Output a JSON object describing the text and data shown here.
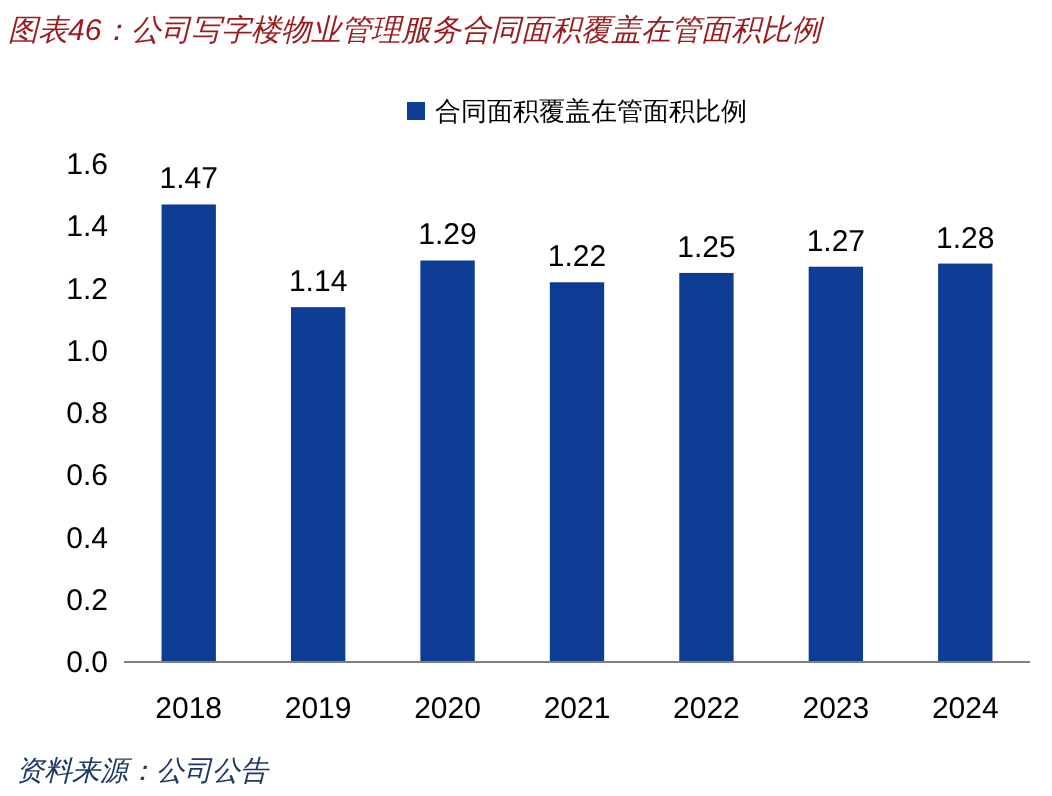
{
  "chart_data": {
    "type": "bar",
    "title": "图表46：公司写字楼物业管理服务合同面积覆盖在管面积比例",
    "categories": [
      "2018",
      "2019",
      "2020",
      "2021",
      "2022",
      "2023",
      "2024"
    ],
    "series": [
      {
        "name": "合同面积覆盖在管面积比例",
        "color": "#0e3b94",
        "values": [
          1.47,
          1.14,
          1.29,
          1.22,
          1.25,
          1.27,
          1.28
        ]
      }
    ],
    "ylim": [
      0,
      1.6
    ],
    "yticks": [
      {
        "value": 0,
        "label": "0.0"
      },
      0.2,
      0.4,
      0.6,
      0.8,
      {
        "value": 1,
        "label": "1.0"
      },
      1.2,
      1.4,
      1.6
    ],
    "data_labels": true,
    "legend": "top",
    "grid": false,
    "annotations": [
      "资料来源：公司公告"
    ]
  }
}
